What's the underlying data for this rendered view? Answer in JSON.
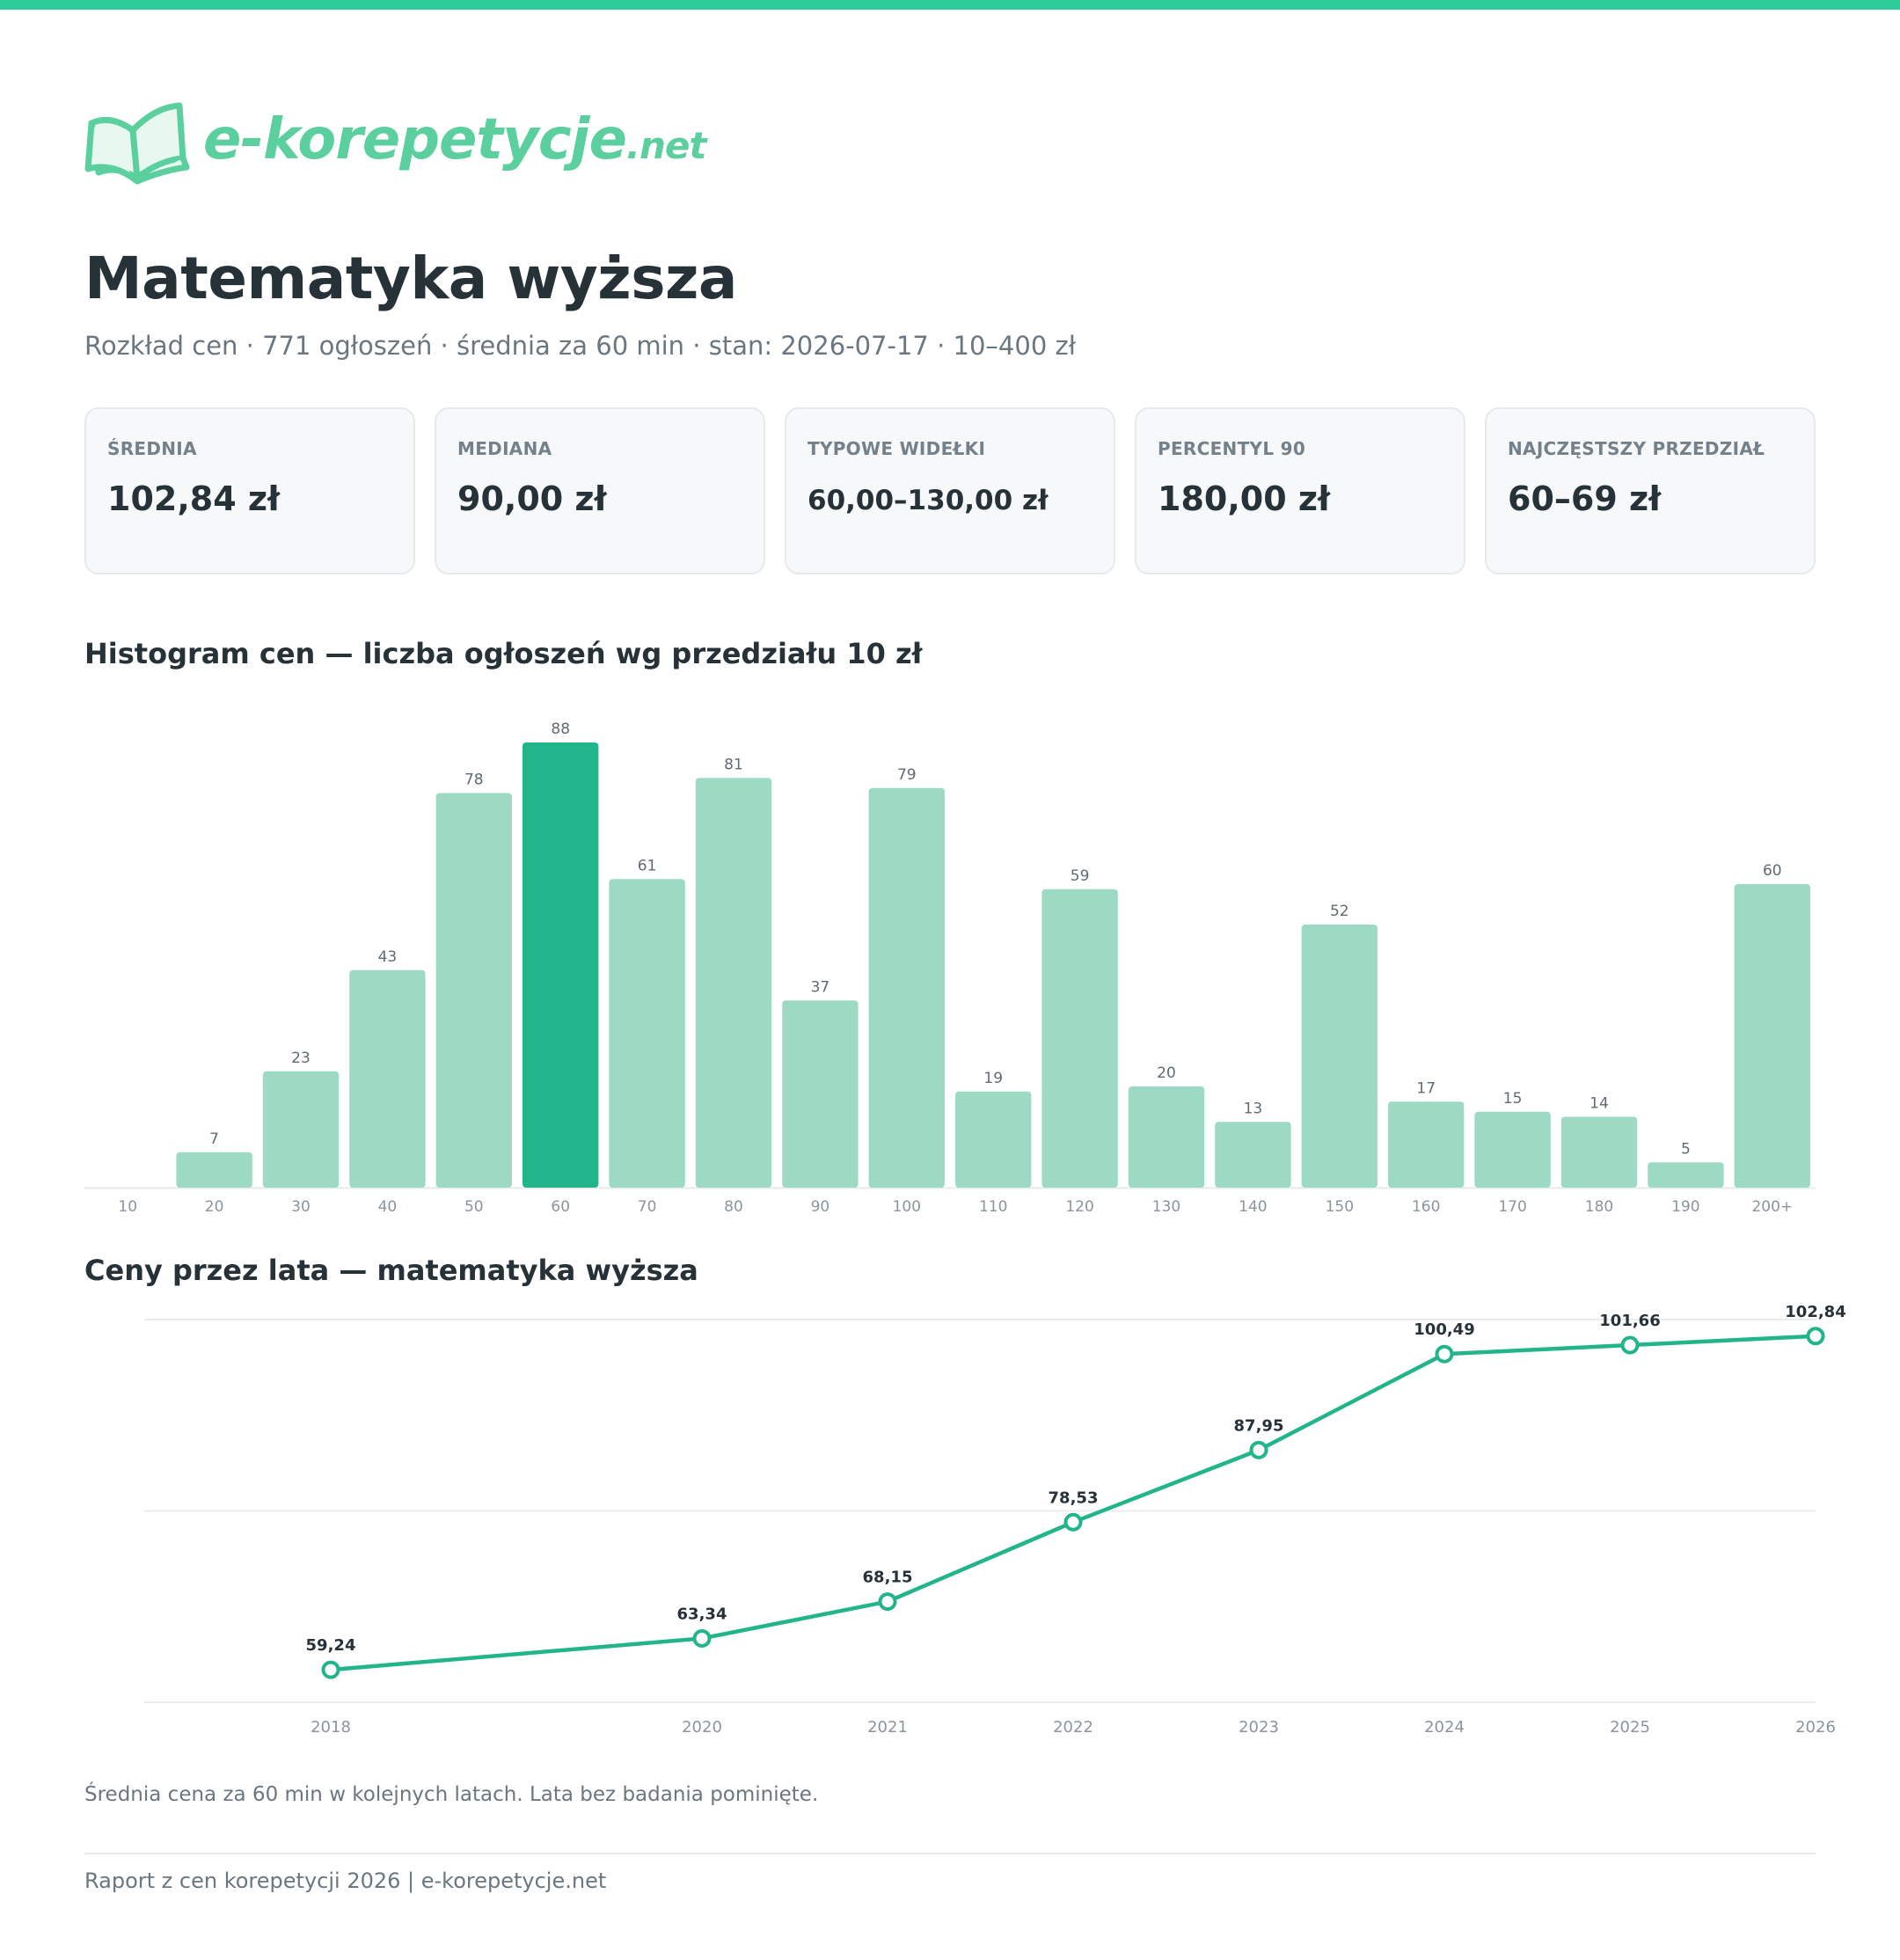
{
  "brand": {
    "name": "e-korepetycje",
    "tld": ".net",
    "color": "#5ccf9f",
    "accent": "#2ecc9a",
    "icon": "open-book-icon"
  },
  "header": {
    "title": "Matematyka wyższa",
    "subtitle": "Rozkład cen · 771 ogłoszeń · średnia za 60 min · stan: 2026-07-17 · 10–400 zł"
  },
  "stats": [
    {
      "label": "ŚREDNIA",
      "value": "102,84 zł"
    },
    {
      "label": "MEDIANA",
      "value": "90,00 zł"
    },
    {
      "label": "TYPOWE WIDEŁKI",
      "value": "60,00–130,00 zł"
    },
    {
      "label": "PERCENTYL 90",
      "value": "180,00 zł"
    },
    {
      "label": "NAJCZĘSTSZY PRZEDZIAŁ",
      "value": "60–69 zł"
    }
  ],
  "chart_data": [
    {
      "type": "bar",
      "title": "Histogram cen — liczba ogłoszeń wg przedziału 10 zł",
      "categories": [
        "10",
        "20",
        "30",
        "40",
        "50",
        "60",
        "70",
        "80",
        "90",
        "100",
        "110",
        "120",
        "130",
        "140",
        "150",
        "160",
        "170",
        "180",
        "190",
        "200+"
      ],
      "values": [
        0,
        7,
        23,
        43,
        78,
        88,
        61,
        81,
        37,
        79,
        19,
        59,
        20,
        13,
        52,
        17,
        15,
        14,
        5,
        60
      ],
      "highlight_category": "60",
      "colors": {
        "bar": "#9ddac4",
        "highlight": "#22b58b"
      },
      "ylim": [
        0,
        88
      ],
      "grid": false,
      "xlabel": "",
      "ylabel": ""
    },
    {
      "type": "line",
      "title": "Ceny przez lata — matematyka wyższa",
      "x": [
        2018,
        2020,
        2021,
        2022,
        2023,
        2024,
        2025,
        2026
      ],
      "values": [
        59.24,
        63.34,
        68.15,
        78.53,
        87.95,
        100.49,
        101.66,
        102.84
      ],
      "labels": [
        "59,24",
        "63,34",
        "68,15",
        "78,53",
        "87,95",
        "100,49",
        "101,66",
        "102,84"
      ],
      "xticks": [
        "2018",
        "2020",
        "2021",
        "2022",
        "2023",
        "2024",
        "2025",
        "2026"
      ],
      "ylim": [
        55,
        105
      ],
      "grid": true,
      "color": "#22b58b",
      "xlabel": "",
      "ylabel": ""
    }
  ],
  "note": "Średnia cena za 60 min w kolejnych latach. Lata bez badania pominięte.",
  "footer": "Raport z cen korepetycji 2026 | e-korepetycje.net"
}
